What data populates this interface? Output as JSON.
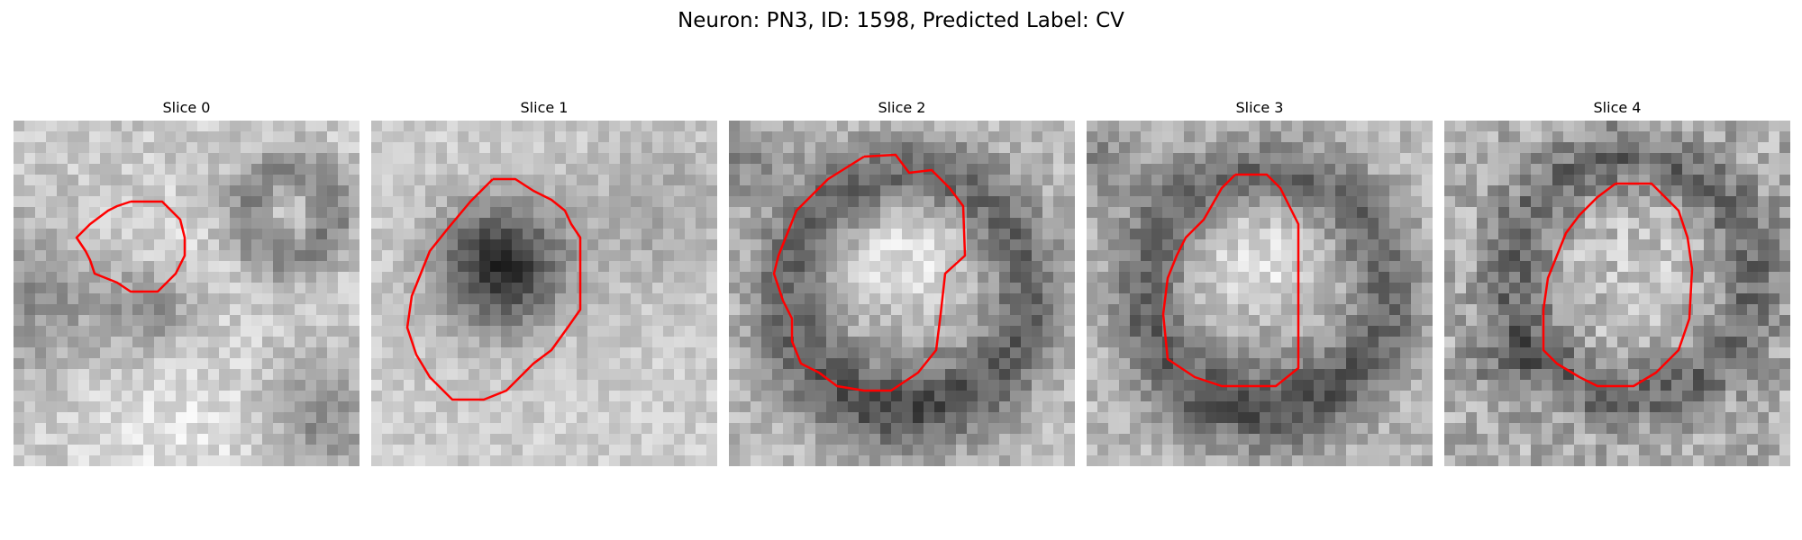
{
  "figure": {
    "title": "Neuron: PN3, ID: 1598, Predicted Label: CV"
  },
  "panels": [
    {
      "title": "Slice 0",
      "pattern": "left-blob"
    },
    {
      "title": "Slice 1",
      "pattern": "dark-center"
    },
    {
      "title": "Slice 2",
      "pattern": "ring-bright-center"
    },
    {
      "title": "Slice 3",
      "pattern": "ring-bright-center"
    },
    {
      "title": "Slice 4",
      "pattern": "ring-noisy"
    }
  ],
  "colors": {
    "contour": "#ff0000",
    "background": "#ffffff"
  }
}
